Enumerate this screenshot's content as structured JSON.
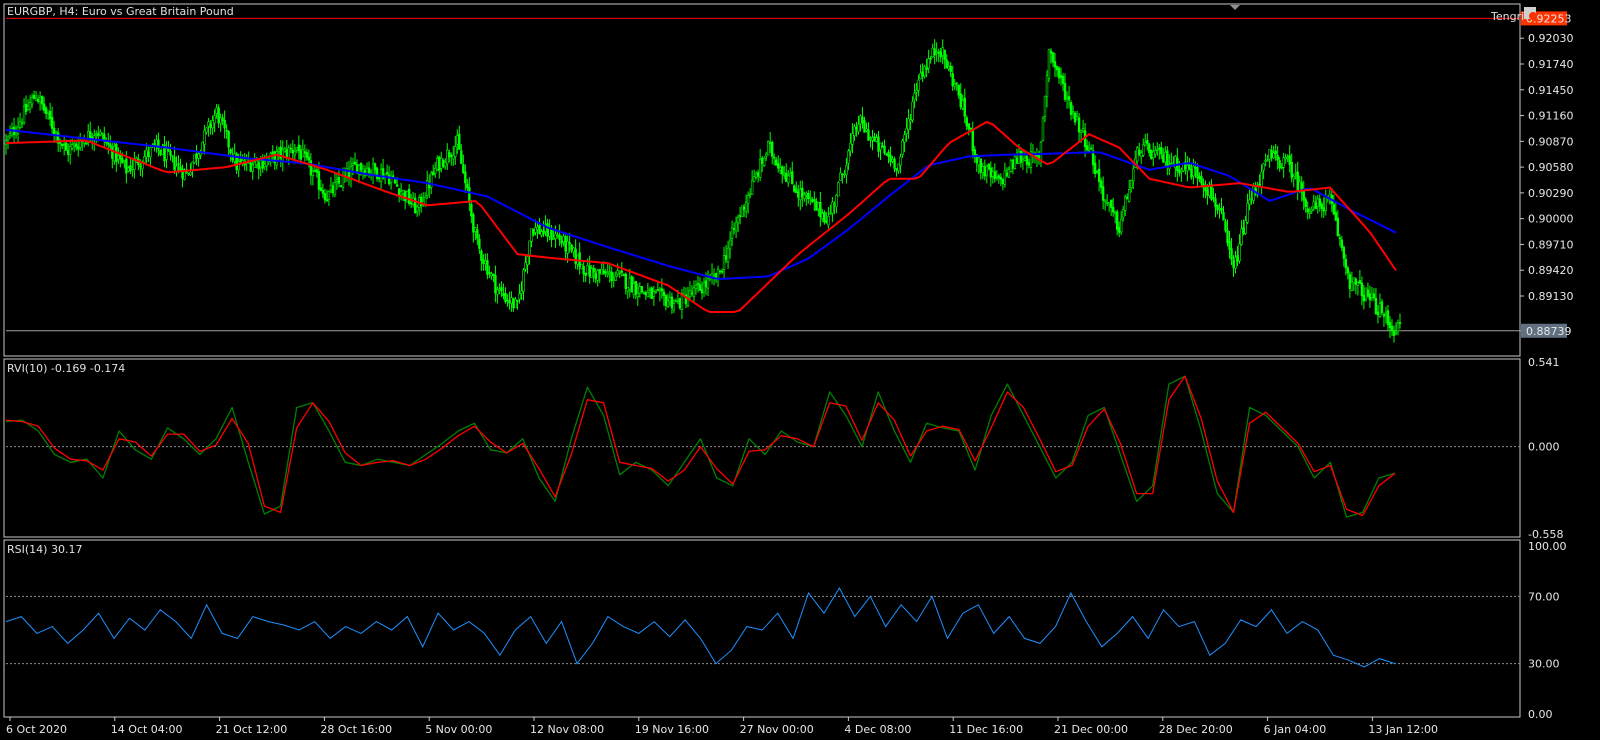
{
  "header": {
    "symbol_title": "EURGBP, H4:  Euro vs Great Britain Pound",
    "brand": "Tengri"
  },
  "colors": {
    "background": "#000000",
    "frame": "#c8c8c8",
    "bull_candle": "#00ff00",
    "bear_candle": "#00ff00",
    "ma_fast": "#ff0000",
    "ma_slow": "#0000ff",
    "rvi_main": "#008000",
    "rvi_signal": "#ff0000",
    "rsi_line": "#1e90ff",
    "price_line": "#ff0000",
    "bid_line": "#a0a0a0",
    "badge_top": "#ff3300",
    "badge_bid": "#607080"
  },
  "chart_data": [
    {
      "type": "candlestick",
      "title": "EURGBP, H4:  Euro vs Great Britain Pound",
      "y_ticks": [
        "0.92030",
        "0.91740",
        "0.91450",
        "0.91160",
        "0.90870",
        "0.90580",
        "0.90290",
        "0.90000",
        "0.89710",
        "0.89420",
        "0.89130"
      ],
      "ylim": [
        0.885,
        0.9237
      ],
      "top_price_label": "0.92253",
      "current_price_label": "0.88739",
      "current_price": 0.88739,
      "top_line_price": 0.92253,
      "x_ticks": [
        "6 Oct 2020",
        "14 Oct 04:00",
        "21 Oct 12:00",
        "28 Oct 16:00",
        "5 Nov 00:00",
        "12 Nov 08:00",
        "19 Nov 16:00",
        "27 Nov 00:00",
        "4 Dec 08:00",
        "11 Dec 16:00",
        "21 Dec 00:00",
        "28 Dec 20:00",
        "6 Jan 04:00",
        "13 Jan 12:00"
      ],
      "close_path_knots": [
        [
          0,
          0.9085
        ],
        [
          15,
          0.914
        ],
        [
          30,
          0.9075
        ],
        [
          45,
          0.91
        ],
        [
          60,
          0.9055
        ],
        [
          75,
          0.908
        ],
        [
          90,
          0.905
        ],
        [
          105,
          0.912
        ],
        [
          115,
          0.906
        ],
        [
          130,
          0.9065
        ],
        [
          145,
          0.908
        ],
        [
          160,
          0.9025
        ],
        [
          175,
          0.906
        ],
        [
          190,
          0.905
        ],
        [
          205,
          0.901
        ],
        [
          215,
          0.906
        ],
        [
          225,
          0.9085
        ],
        [
          235,
          0.897
        ],
        [
          245,
          0.892
        ],
        [
          255,
          0.89
        ],
        [
          262,
          0.899
        ],
        [
          275,
          0.898
        ],
        [
          290,
          0.894
        ],
        [
          305,
          0.8935
        ],
        [
          320,
          0.8915
        ],
        [
          335,
          0.8905
        ],
        [
          345,
          0.892
        ],
        [
          355,
          0.8935
        ],
        [
          365,
          0.9
        ],
        [
          380,
          0.908
        ],
        [
          395,
          0.903
        ],
        [
          410,
          0.9
        ],
        [
          425,
          0.911
        ],
        [
          435,
          0.908
        ],
        [
          445,
          0.906
        ],
        [
          455,
          0.916
        ],
        [
          465,
          0.9195
        ],
        [
          475,
          0.914
        ],
        [
          485,
          0.906
        ],
        [
          495,
          0.904
        ],
        [
          505,
          0.907
        ],
        [
          515,
          0.9065
        ],
        [
          520,
          0.919
        ],
        [
          530,
          0.913
        ],
        [
          540,
          0.908
        ],
        [
          548,
          0.902
        ],
        [
          555,
          0.899
        ],
        [
          565,
          0.908
        ],
        [
          575,
          0.907
        ],
        [
          585,
          0.906
        ],
        [
          595,
          0.905
        ],
        [
          605,
          0.901
        ],
        [
          612,
          0.894
        ],
        [
          620,
          0.902
        ],
        [
          630,
          0.907
        ],
        [
          640,
          0.906
        ],
        [
          650,
          0.901
        ],
        [
          660,
          0.902
        ],
        [
          670,
          0.893
        ],
        [
          680,
          0.891
        ],
        [
          692,
          0.8876
        ]
      ],
      "ma_fast_knots": [
        [
          0,
          0.9085
        ],
        [
          40,
          0.9088
        ],
        [
          80,
          0.9052
        ],
        [
          110,
          0.9058
        ],
        [
          135,
          0.9072
        ],
        [
          160,
          0.9055
        ],
        [
          190,
          0.903
        ],
        [
          210,
          0.9015
        ],
        [
          235,
          0.902
        ],
        [
          255,
          0.896
        ],
        [
          275,
          0.8955
        ],
        [
          300,
          0.895
        ],
        [
          330,
          0.8925
        ],
        [
          350,
          0.8895
        ],
        [
          365,
          0.8895
        ],
        [
          395,
          0.896
        ],
        [
          420,
          0.9005
        ],
        [
          440,
          0.9045
        ],
        [
          455,
          0.9045
        ],
        [
          470,
          0.9085
        ],
        [
          490,
          0.911
        ],
        [
          505,
          0.908
        ],
        [
          520,
          0.906
        ],
        [
          540,
          0.9095
        ],
        [
          555,
          0.908
        ],
        [
          570,
          0.9045
        ],
        [
          590,
          0.9035
        ],
        [
          615,
          0.904
        ],
        [
          640,
          0.903
        ],
        [
          660,
          0.9035
        ],
        [
          680,
          0.8985
        ],
        [
          695,
          0.8935
        ]
      ],
      "ma_slow_knots": [
        [
          0,
          0.91
        ],
        [
          40,
          0.909
        ],
        [
          80,
          0.908
        ],
        [
          120,
          0.9068
        ],
        [
          150,
          0.9062
        ],
        [
          180,
          0.905
        ],
        [
          210,
          0.904
        ],
        [
          240,
          0.9025
        ],
        [
          270,
          0.899
        ],
        [
          300,
          0.8968
        ],
        [
          330,
          0.8947
        ],
        [
          355,
          0.8932
        ],
        [
          380,
          0.8935
        ],
        [
          400,
          0.8955
        ],
        [
          420,
          0.8988
        ],
        [
          440,
          0.9025
        ],
        [
          460,
          0.906
        ],
        [
          480,
          0.907
        ],
        [
          500,
          0.9072
        ],
        [
          520,
          0.9073
        ],
        [
          545,
          0.9075
        ],
        [
          570,
          0.9055
        ],
        [
          590,
          0.9063
        ],
        [
          610,
          0.9048
        ],
        [
          630,
          0.902
        ],
        [
          650,
          0.9035
        ],
        [
          670,
          0.901
        ],
        [
          695,
          0.8982
        ]
      ]
    },
    {
      "type": "line",
      "title": "RVI(10) -0.169 -0.174",
      "y_ticks": [
        "0.541",
        "0.000",
        "-0.558"
      ],
      "ylim": [
        -0.558,
        0.541
      ],
      "zero_line": 0.0,
      "series": [
        {
          "name": "",
          "color": "#008000",
          "values": [
            0.16,
            0.17,
            0.1,
            -0.05,
            -0.1,
            -0.08,
            -0.2,
            0.1,
            -0.02,
            -0.08,
            0.12,
            0.05,
            -0.05,
            0.05,
            0.25,
            -0.1,
            -0.43,
            -0.38,
            0.25,
            0.28,
            0.1,
            -0.1,
            -0.12,
            -0.08,
            -0.1,
            -0.12,
            -0.05,
            0.02,
            0.1,
            0.15,
            -0.02,
            -0.04,
            0.05,
            -0.2,
            -0.35,
            0.05,
            0.38,
            0.2,
            -0.18,
            -0.1,
            -0.15,
            -0.25,
            -0.1,
            0.05,
            -0.2,
            -0.25,
            0.05,
            -0.05,
            0.1,
            0.03,
            0.0,
            0.35,
            0.2,
            0.0,
            0.35,
            0.1,
            -0.1,
            0.15,
            0.12,
            0.1,
            -0.15,
            0.2,
            0.4,
            0.2,
            0.0,
            -0.2,
            -0.1,
            0.2,
            0.25,
            -0.05,
            -0.35,
            -0.25,
            0.4,
            0.45,
            0.1,
            -0.3,
            -0.42,
            0.25,
            0.2,
            0.1,
            0.0,
            -0.2,
            -0.1,
            -0.45,
            -0.42,
            -0.2,
            -0.17
          ]
        },
        {
          "name": "",
          "color": "#ff0000",
          "values": [
            0.17,
            0.16,
            0.13,
            -0.01,
            -0.08,
            -0.09,
            -0.15,
            0.05,
            0.03,
            -0.06,
            0.08,
            0.08,
            -0.03,
            0.01,
            0.18,
            0.02,
            -0.38,
            -0.42,
            0.12,
            0.28,
            0.16,
            -0.04,
            -0.12,
            -0.1,
            -0.09,
            -0.12,
            -0.08,
            -0.01,
            0.07,
            0.13,
            0.03,
            -0.04,
            0.02,
            -0.14,
            -0.32,
            -0.05,
            0.3,
            0.28,
            -0.1,
            -0.12,
            -0.14,
            -0.22,
            -0.15,
            0.0,
            -0.14,
            -0.24,
            -0.03,
            -0.02,
            0.07,
            0.05,
            0.0,
            0.28,
            0.26,
            0.04,
            0.28,
            0.17,
            -0.06,
            0.1,
            0.13,
            0.11,
            -0.09,
            0.12,
            0.35,
            0.25,
            0.05,
            -0.16,
            -0.12,
            0.13,
            0.24,
            0.02,
            -0.3,
            -0.3,
            0.3,
            0.45,
            0.18,
            -0.22,
            -0.42,
            0.15,
            0.22,
            0.12,
            0.02,
            -0.16,
            -0.12,
            -0.4,
            -0.44,
            -0.25,
            -0.17
          ]
        }
      ]
    },
    {
      "type": "line",
      "title": "RSI(14) 30.17",
      "y_ticks": [
        "100.00",
        "70.00",
        "30.00",
        "0.00"
      ],
      "ylim": [
        0,
        100
      ],
      "levels": [
        70,
        30
      ],
      "series": [
        {
          "name": "",
          "color": "#1e90ff",
          "values": [
            55,
            58,
            48,
            52,
            42,
            50,
            60,
            45,
            57,
            50,
            62,
            55,
            45,
            65,
            48,
            45,
            58,
            55,
            53,
            50,
            55,
            45,
            52,
            48,
            55,
            50,
            58,
            40,
            60,
            50,
            55,
            48,
            35,
            50,
            58,
            42,
            55,
            30,
            42,
            58,
            52,
            48,
            55,
            46,
            56,
            45,
            30,
            38,
            52,
            50,
            60,
            45,
            72,
            60,
            75,
            58,
            70,
            52,
            65,
            55,
            70,
            45,
            60,
            65,
            48,
            58,
            45,
            42,
            52,
            72,
            55,
            40,
            48,
            58,
            45,
            62,
            52,
            55,
            35,
            42,
            56,
            52,
            62,
            48,
            55,
            50,
            35,
            32,
            28,
            33,
            30
          ]
        }
      ]
    }
  ]
}
